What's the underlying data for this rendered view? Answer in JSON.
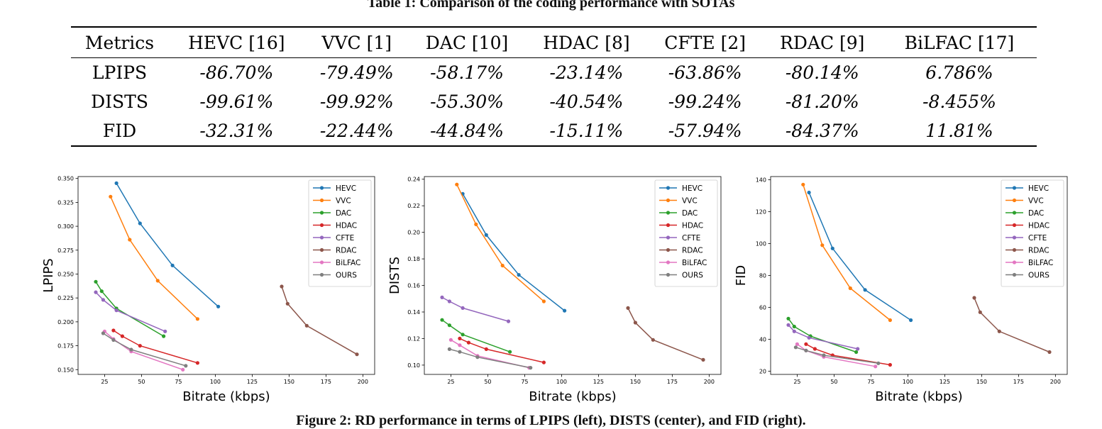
{
  "table": {
    "caption": "Table 1: Comparison of the coding performance with SOTAs",
    "headers": [
      "Metrics",
      "HEVC [16]",
      "VVC [1]",
      "DAC [10]",
      "HDAC [8]",
      "CFTE [2]",
      "RDAC [9]",
      "BiLFAC [17]"
    ],
    "rows": [
      [
        "LPIPS",
        "-86.70%",
        "-79.49%",
        "-58.17%",
        "-23.14%",
        "-63.86%",
        "-80.14%",
        "6.786%"
      ],
      [
        "DISTS",
        "-99.61%",
        "-99.92%",
        "-55.30%",
        "-40.54%",
        "-99.24%",
        "-81.20%",
        "-8.455%"
      ],
      [
        "FID",
        "-32.31%",
        "-22.44%",
        "-44.84%",
        "-15.11%",
        "-57.94%",
        "-84.37%",
        "11.81%"
      ]
    ]
  },
  "figure_caption": "Figure 2: RD performance in terms of LPIPS (left), DISTS (center), and FID (right).",
  "series_colors": {
    "HEVC": "#1f77b4",
    "VVC": "#ff7f0e",
    "DAC": "#2ca02c",
    "HDAC": "#d62728",
    "CFTE": "#9467bd",
    "RDAC": "#8c564b",
    "BiLFAC": "#e377c2",
    "OURS": "#7f7f7f"
  },
  "chart_data": [
    {
      "type": "line",
      "xlabel": "Bitrate (kbps)",
      "ylabel": "LPIPS",
      "xlim": [
        7,
        208
      ],
      "ylim": [
        0.145,
        0.352
      ],
      "xticks": [
        25,
        50,
        75,
        100,
        125,
        150,
        175,
        200
      ],
      "yticks": [
        0.15,
        0.175,
        0.2,
        0.225,
        0.25,
        0.275,
        0.3,
        0.325,
        0.35
      ],
      "ytick_labels": [
        "0.150",
        "0.175",
        "0.200",
        "0.225",
        "0.250",
        "0.275",
        "0.300",
        "0.325",
        "0.350"
      ],
      "legend": "top-right",
      "grid": false,
      "series": [
        {
          "name": "HEVC",
          "x": [
            33,
            49,
            71,
            102
          ],
          "y": [
            0.345,
            0.303,
            0.259,
            0.216
          ]
        },
        {
          "name": "VVC",
          "x": [
            29,
            42,
            61,
            88
          ],
          "y": [
            0.331,
            0.286,
            0.243,
            0.203
          ]
        },
        {
          "name": "DAC",
          "x": [
            19,
            23,
            33,
            65
          ],
          "y": [
            0.242,
            0.232,
            0.214,
            0.185
          ]
        },
        {
          "name": "HDAC",
          "x": [
            31,
            37,
            49,
            88
          ],
          "y": [
            0.191,
            0.185,
            0.175,
            0.157
          ]
        },
        {
          "name": "CFTE",
          "x": [
            19,
            24,
            33,
            66
          ],
          "y": [
            0.231,
            0.223,
            0.212,
            0.19
          ]
        },
        {
          "name": "RDAC",
          "x": [
            145,
            149,
            162,
            196
          ],
          "y": [
            0.237,
            0.219,
            0.196,
            0.166
          ]
        },
        {
          "name": "BiLFAC",
          "x": [
            25,
            31,
            43,
            78
          ],
          "y": [
            0.19,
            0.182,
            0.169,
            0.15
          ]
        },
        {
          "name": "OURS",
          "x": [
            24,
            31,
            43,
            80
          ],
          "y": [
            0.188,
            0.181,
            0.171,
            0.154
          ]
        }
      ]
    },
    {
      "type": "line",
      "xlabel": "Bitrate (kbps)",
      "ylabel": "DISTS",
      "xlim": [
        7,
        208
      ],
      "ylim": [
        0.093,
        0.242
      ],
      "xticks": [
        25,
        50,
        75,
        100,
        125,
        150,
        175,
        200
      ],
      "yticks": [
        0.1,
        0.12,
        0.14,
        0.16,
        0.18,
        0.2,
        0.22,
        0.24
      ],
      "ytick_labels": [
        "0.10",
        "0.12",
        "0.14",
        "0.16",
        "0.18",
        "0.20",
        "0.22",
        "0.24"
      ],
      "legend": "top-right",
      "grid": false,
      "series": [
        {
          "name": "HEVC",
          "x": [
            33,
            49,
            71,
            102
          ],
          "y": [
            0.229,
            0.198,
            0.168,
            0.141
          ]
        },
        {
          "name": "VVC",
          "x": [
            29,
            42,
            60,
            88
          ],
          "y": [
            0.236,
            0.206,
            0.175,
            0.148
          ]
        },
        {
          "name": "DAC",
          "x": [
            19,
            24,
            33,
            65
          ],
          "y": [
            0.134,
            0.13,
            0.123,
            0.11
          ]
        },
        {
          "name": "HDAC",
          "x": [
            31,
            37,
            49,
            88
          ],
          "y": [
            0.12,
            0.117,
            0.112,
            0.102
          ]
        },
        {
          "name": "CFTE",
          "x": [
            19,
            24,
            33,
            64
          ],
          "y": [
            0.151,
            0.148,
            0.143,
            0.133
          ]
        },
        {
          "name": "RDAC",
          "x": [
            145,
            150,
            162,
            196
          ],
          "y": [
            0.143,
            0.132,
            0.119,
            0.104
          ]
        },
        {
          "name": "BiLFAC",
          "x": [
            25,
            31,
            43,
            78
          ],
          "y": [
            0.119,
            0.115,
            0.107,
            0.098
          ]
        },
        {
          "name": "OURS",
          "x": [
            24,
            31,
            43,
            79
          ],
          "y": [
            0.112,
            0.11,
            0.106,
            0.098
          ]
        }
      ]
    },
    {
      "type": "line",
      "xlabel": "Bitrate (kbps)",
      "ylabel": "FID",
      "xlim": [
        7,
        208
      ],
      "ylim": [
        18,
        142
      ],
      "xticks": [
        25,
        50,
        75,
        100,
        125,
        150,
        175,
        200
      ],
      "yticks": [
        20,
        40,
        60,
        80,
        100,
        120,
        140
      ],
      "ytick_labels": [
        "20",
        "40",
        "60",
        "80",
        "100",
        "120",
        "140"
      ],
      "legend": "top-right",
      "grid": false,
      "series": [
        {
          "name": "HEVC",
          "x": [
            33,
            49,
            71,
            102
          ],
          "y": [
            132,
            97,
            71,
            52
          ]
        },
        {
          "name": "VVC",
          "x": [
            29,
            42,
            61,
            88
          ],
          "y": [
            137,
            99,
            72,
            52
          ]
        },
        {
          "name": "DAC",
          "x": [
            19,
            23,
            34,
            65
          ],
          "y": [
            53,
            48,
            42,
            32
          ]
        },
        {
          "name": "HDAC",
          "x": [
            31,
            37,
            49,
            88
          ],
          "y": [
            37,
            34,
            30,
            24
          ]
        },
        {
          "name": "CFTE",
          "x": [
            19,
            23,
            33,
            66
          ],
          "y": [
            49,
            45,
            41,
            34
          ]
        },
        {
          "name": "RDAC",
          "x": [
            145,
            149,
            162,
            196
          ],
          "y": [
            66,
            57,
            45,
            32
          ]
        },
        {
          "name": "BiLFAC",
          "x": [
            25,
            31,
            43,
            78
          ],
          "y": [
            37,
            33,
            29,
            23
          ]
        },
        {
          "name": "OURS",
          "x": [
            24,
            31,
            43,
            80
          ],
          "y": [
            35,
            33,
            30,
            25
          ]
        }
      ]
    }
  ]
}
